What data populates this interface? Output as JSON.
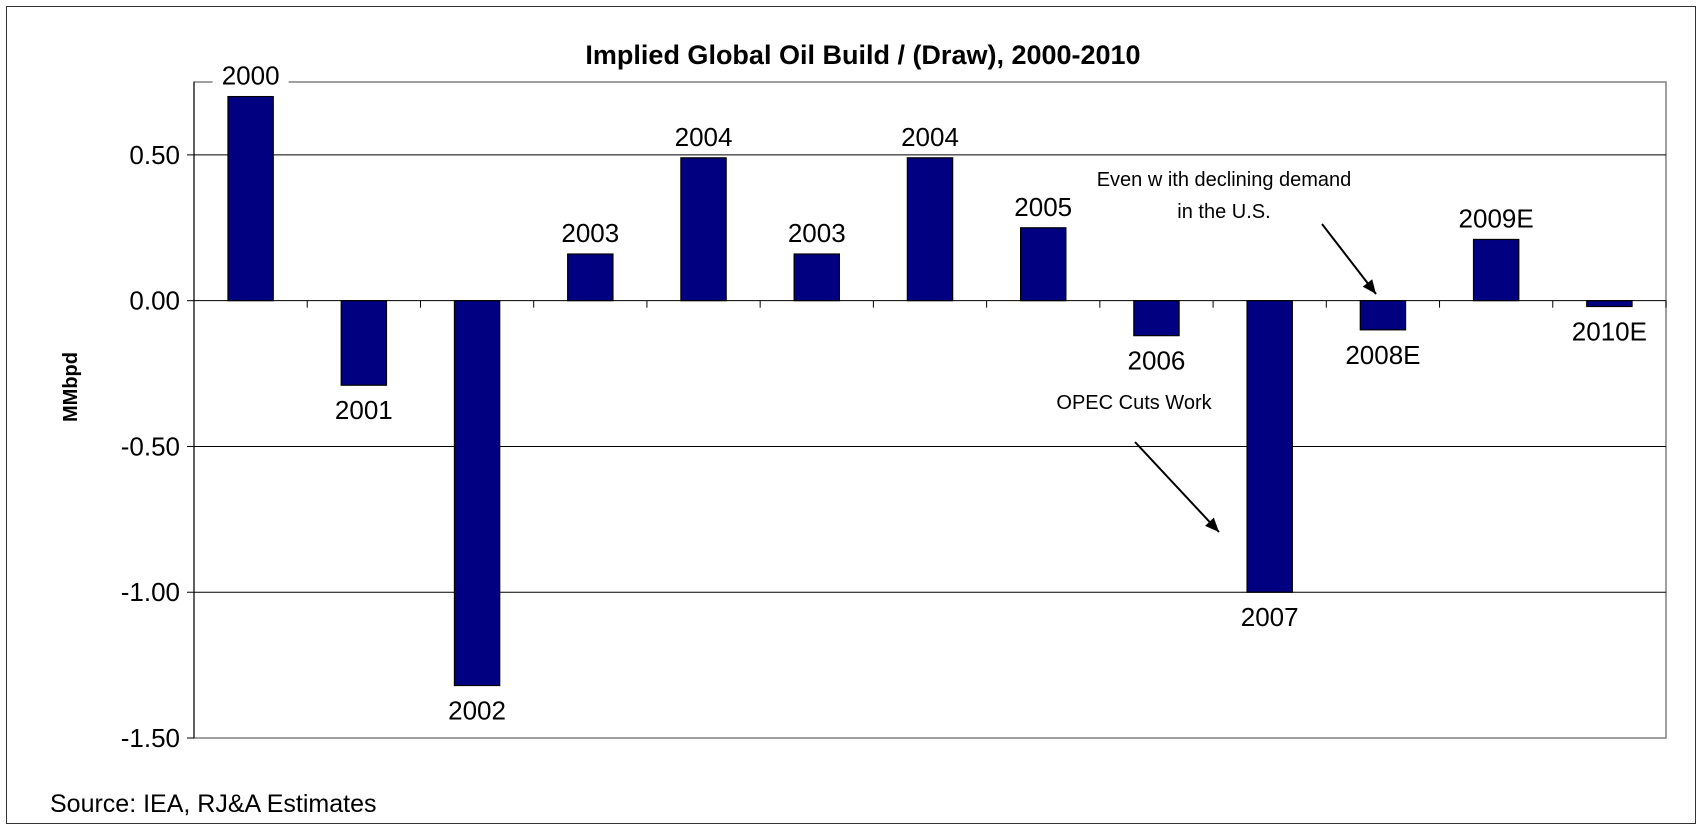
{
  "chart_data": {
    "type": "bar",
    "title": "Implied Global Oil Build / (Draw), 2000-2010",
    "ylabel": "MMbpd",
    "xlabel": "",
    "ylim": [
      -1.5,
      0.75
    ],
    "yticks": [
      "0.50",
      "0.00",
      "-0.50",
      "-1.00",
      "-1.50"
    ],
    "ytick_values": [
      0.5,
      0.0,
      -0.5,
      -1.0,
      -1.5
    ],
    "grid": true,
    "bar_color": "#000080",
    "categories": [
      "2000",
      "2001",
      "2002",
      "2003",
      "2004",
      "2003",
      "2004",
      "2005",
      "2006",
      "2007",
      "2008E",
      "2009E",
      "2010E"
    ],
    "values": [
      0.7,
      -0.29,
      -1.32,
      0.16,
      0.49,
      0.16,
      0.49,
      0.25,
      -0.12,
      -1.0,
      -0.1,
      0.21,
      -0.02
    ],
    "annotations": [
      {
        "lines": [
          "Even w ith declining demand",
          "in the  U.S."
        ],
        "target": "2008E"
      },
      {
        "lines": [
          "OPEC Cuts Work"
        ],
        "target": "2007"
      }
    ],
    "source": "Source: IEA, RJ&A Estimates"
  }
}
